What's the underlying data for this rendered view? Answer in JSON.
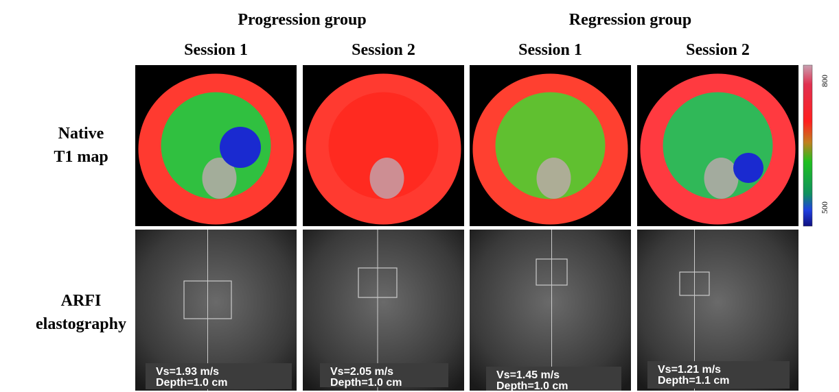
{
  "groups": [
    {
      "title": "Progression group",
      "sessions": [
        "Session 1",
        "Session 2"
      ]
    },
    {
      "title": "Regression group",
      "sessions": [
        "Session 1",
        "Session 2"
      ]
    }
  ],
  "rows": [
    [
      "Native",
      "T1 map"
    ],
    [
      "ARFI",
      "elastography"
    ]
  ],
  "colorbar": {
    "max": 800,
    "min": 500
  },
  "measurements": [
    {
      "vs": "Vs=1.93 m/s",
      "depth": "Depth=1.0 cm"
    },
    {
      "vs": "Vs=2.05 m/s",
      "depth": "Depth=1.0 cm"
    },
    {
      "vs": "Vs=1.45 m/s",
      "depth": "Depth=1.0 cm"
    },
    {
      "vs": "Vs=1.21 m/s",
      "depth": "Depth=1.1 cm"
    }
  ]
}
